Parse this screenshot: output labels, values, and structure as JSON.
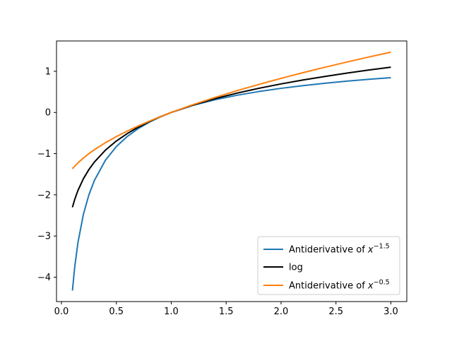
{
  "chart_data": {
    "type": "line",
    "title": "",
    "xlabel": "",
    "ylabel": "",
    "xlim": [
      -0.045,
      3.145
    ],
    "ylim": [
      -4.592,
      1.736
    ],
    "xticks": [
      0.0,
      0.5,
      1.0,
      1.5,
      2.0,
      2.5,
      3.0
    ],
    "xtick_labels": [
      "0.0",
      "0.5",
      "1.0",
      "1.5",
      "2.0",
      "2.5",
      "3.0"
    ],
    "yticks": [
      -4,
      -3,
      -2,
      -1,
      0,
      1
    ],
    "ytick_labels": [
      "−4",
      "−3",
      "−2",
      "−1",
      "0",
      "1"
    ],
    "grid": false,
    "legend_position": "lower right",
    "x": [
      0.1,
      0.12,
      0.15,
      0.2,
      0.25,
      0.3,
      0.4,
      0.5,
      0.6,
      0.7,
      0.8,
      0.9,
      1.0,
      1.2,
      1.4,
      1.6,
      1.8,
      2.0,
      2.2,
      2.4,
      2.6,
      2.8,
      3.0
    ],
    "series": [
      {
        "name_prefix": "Antiderivative of ",
        "name_math": "x",
        "name_exponent": "−1.5",
        "color": "#1f77b4",
        "values": [
          -4.325,
          -3.774,
          -3.164,
          -2.472,
          -2.0,
          -1.651,
          -1.162,
          -0.828,
          -0.582,
          -0.39,
          -0.236,
          -0.108,
          0.0,
          0.174,
          0.31,
          0.419,
          0.509,
          0.586,
          0.652,
          0.709,
          0.76,
          0.805,
          0.845
        ]
      },
      {
        "name": "log",
        "color": "#000000",
        "values": [
          -2.303,
          -2.12,
          -1.897,
          -1.609,
          -1.386,
          -1.204,
          -0.916,
          -0.693,
          -0.511,
          -0.357,
          -0.223,
          -0.105,
          0.0,
          0.182,
          0.336,
          0.47,
          0.588,
          0.693,
          0.788,
          0.875,
          0.956,
          1.03,
          1.099
        ]
      },
      {
        "name_prefix": "Antiderivative of ",
        "name_math": "x",
        "name_exponent": "−0.5",
        "color": "#ff7f0e",
        "values": [
          -1.368,
          -1.307,
          -1.225,
          -1.106,
          -1.0,
          -0.905,
          -0.735,
          -0.586,
          -0.451,
          -0.327,
          -0.211,
          -0.103,
          0.0,
          0.191,
          0.366,
          0.53,
          0.683,
          0.828,
          0.966,
          1.098,
          1.225,
          1.347,
          1.464
        ]
      }
    ]
  }
}
